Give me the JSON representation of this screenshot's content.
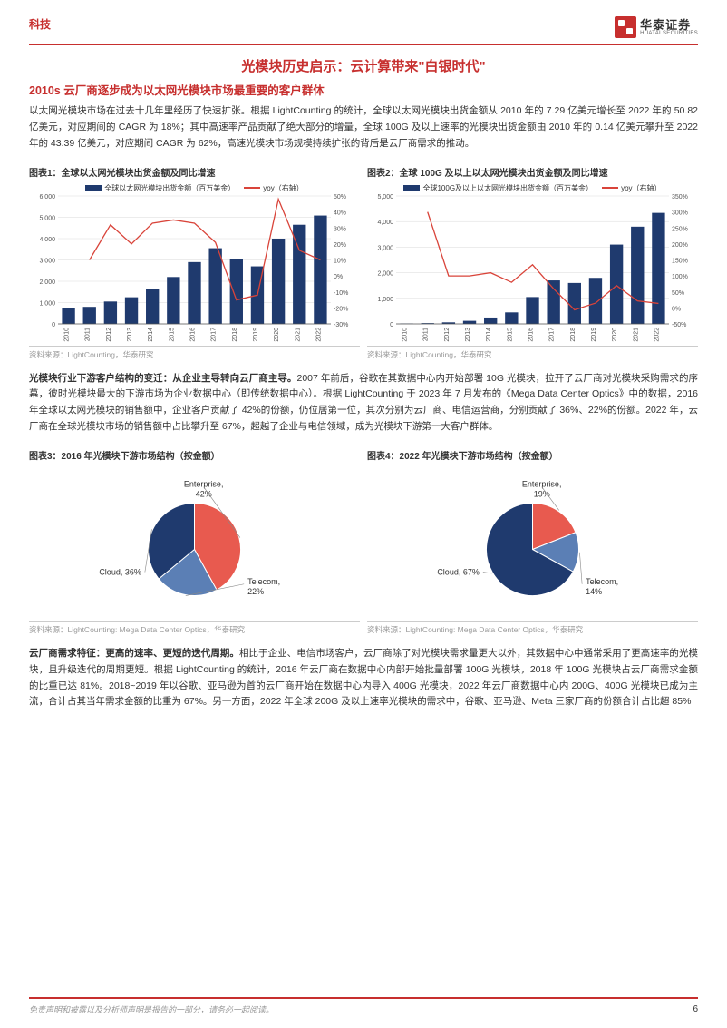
{
  "header": {
    "category": "科技"
  },
  "logo": {
    "cn": "华泰证券",
    "en": "HUATAI SECURITIES"
  },
  "titles": {
    "main": "光模块历史启示：云计算带来\"白银时代\"",
    "sub": "2010s 云厂商逐步成为以太网光模块市场最重要的客户群体"
  },
  "para1": "以太网光模块市场在过去十几年里经历了快速扩张。根据 LightCounting 的统计，全球以太网光模块出货金额从 2010 年的 7.29 亿美元增长至 2022 年的 50.82 亿美元，对应期间的 CAGR 为 18%；其中高速率产品贡献了绝大部分的增量，全球 100G 及以上速率的光模块出货金额由 2010 年的 0.14 亿美元攀升至 2022 年的 43.39 亿美元，对应期间 CAGR 为 62%，高速光模块市场规模持续扩张的背后是云厂商需求的推动。",
  "chart1": {
    "title": "图表1：全球以太网光模块出货金额及同比增速",
    "type": "bar+line",
    "legend_bar": "全球以太网光模块出货金额（百万美金）",
    "legend_line": "yoy（右轴）",
    "categories": [
      "2010",
      "2011",
      "2012",
      "2013",
      "2014",
      "2015",
      "2016",
      "2017",
      "2018",
      "2019",
      "2020",
      "2021",
      "2022"
    ],
    "bar_values": [
      729,
      800,
      1050,
      1250,
      1650,
      2200,
      2900,
      3550,
      3050,
      2700,
      4000,
      4650,
      5082
    ],
    "line_values": [
      null,
      10,
      32,
      20,
      33,
      35,
      33,
      21,
      -15,
      -12,
      48,
      16,
      10
    ],
    "y1_lim": [
      0,
      6000
    ],
    "y1_step": 1000,
    "y2_lim": [
      -30,
      50
    ],
    "y2_step": 10,
    "bar_color": "#1f3a6e",
    "line_color": "#d9443a",
    "grid_color": "#d9d9d9",
    "axis_font": 7,
    "source": "资料来源：LightCounting，华泰研究"
  },
  "chart2": {
    "title": "图表2：全球 100G 及以上以太网光模块出货金额及同比增速",
    "type": "bar+line",
    "legend_bar": "全球100G及以上以太网光模块出货金额（百万美金）",
    "legend_line": "yoy（右轴）",
    "categories": [
      "2010",
      "2011",
      "2012",
      "2013",
      "2014",
      "2015",
      "2016",
      "2017",
      "2018",
      "2019",
      "2020",
      "2021",
      "2022"
    ],
    "bar_values": [
      14,
      30,
      60,
      120,
      250,
      450,
      1050,
      1700,
      1600,
      1800,
      3100,
      3800,
      4339
    ],
    "line_values": [
      null,
      300,
      100,
      100,
      110,
      80,
      135,
      60,
      -6,
      15,
      70,
      22,
      14
    ],
    "y1_lim": [
      0,
      5000
    ],
    "y1_step": 1000,
    "y2_lim": [
      -50,
      350
    ],
    "y2_step": 50,
    "bar_color": "#1f3a6e",
    "line_color": "#d9443a",
    "grid_color": "#d9d9d9",
    "axis_font": 7,
    "source": "资料来源：LightCounting，华泰研究"
  },
  "para2_bold": "光模块行业下游客户结构的变迁：从企业主导转向云厂商主导。",
  "para2": "2007 年前后，谷歌在其数据中心内开始部署 10G 光模块，拉开了云厂商对光模块采购需求的序幕，彼时光模块最大的下游市场为企业数据中心（即传统数据中心）。根据 LightCounting 于 2023 年 7 月发布的《Mega Data Center Optics》中的数据，2016 年全球以太网光模块的销售额中，企业客户贡献了 42%的份额，仍位居第一位，其次分别为云厂商、电信运营商，分别贡献了 36%、22%的份额。2022 年，云厂商在全球光模块市场的销售额中占比攀升至 67%，超越了企业与电信领域，成为光模块下游第一大客户群体。",
  "chart3": {
    "title": "图表3：2016 年光模块下游市场结构（按金额）",
    "type": "pie",
    "slices": [
      {
        "label": "Enterprise,",
        "pct": "42%",
        "value": 42,
        "color": "#e85a4f"
      },
      {
        "label": "Telecom,",
        "pct": "22%",
        "value": 22,
        "color": "#5b7fb5"
      },
      {
        "label": "Cloud, 36%",
        "pct": "",
        "value": 36,
        "color": "#1f3a6e"
      }
    ],
    "label_font": 9,
    "source": "资料来源：LightCounting: Mega Data Center Optics，华泰研究"
  },
  "chart4": {
    "title": "图表4：2022 年光模块下游市场结构（按金额）",
    "type": "pie",
    "slices": [
      {
        "label": "Enterprise,",
        "pct": "19%",
        "value": 19,
        "color": "#e85a4f"
      },
      {
        "label": "Telecom,",
        "pct": "14%",
        "value": 14,
        "color": "#5b7fb5"
      },
      {
        "label": "Cloud, 67%",
        "pct": "",
        "value": 67,
        "color": "#1f3a6e"
      }
    ],
    "label_font": 9,
    "source": "资料来源：LightCounting: Mega Data Center Optics，华泰研究"
  },
  "para3_bold": "云厂商需求特征：更高的速率、更短的迭代周期。",
  "para3": "相比于企业、电信市场客户，云厂商除了对光模块需求量更大以外，其数据中心中通常采用了更高速率的光模块，且升级迭代的周期更短。根据 LightCounting 的统计，2016 年云厂商在数据中心内部开始批量部署 100G 光模块，2018 年 100G 光模块占云厂商需求金额的比重已达 81%。2018~2019 年以谷歌、亚马逊为首的云厂商开始在数据中心内导入 400G 光模块，2022 年云厂商数据中心内 200G、400G 光模块已成为主流，合计占其当年需求金额的比重为 67%。另一方面，2022 年全球 200G 及以上速率光模块的需求中，谷歌、亚马逊、Meta 三家厂商的份额合计占比超 85%",
  "footer": {
    "disclaimer": "免责声明和披露以及分析师声明是报告的一部分，请务必一起阅读。",
    "page": "6"
  }
}
